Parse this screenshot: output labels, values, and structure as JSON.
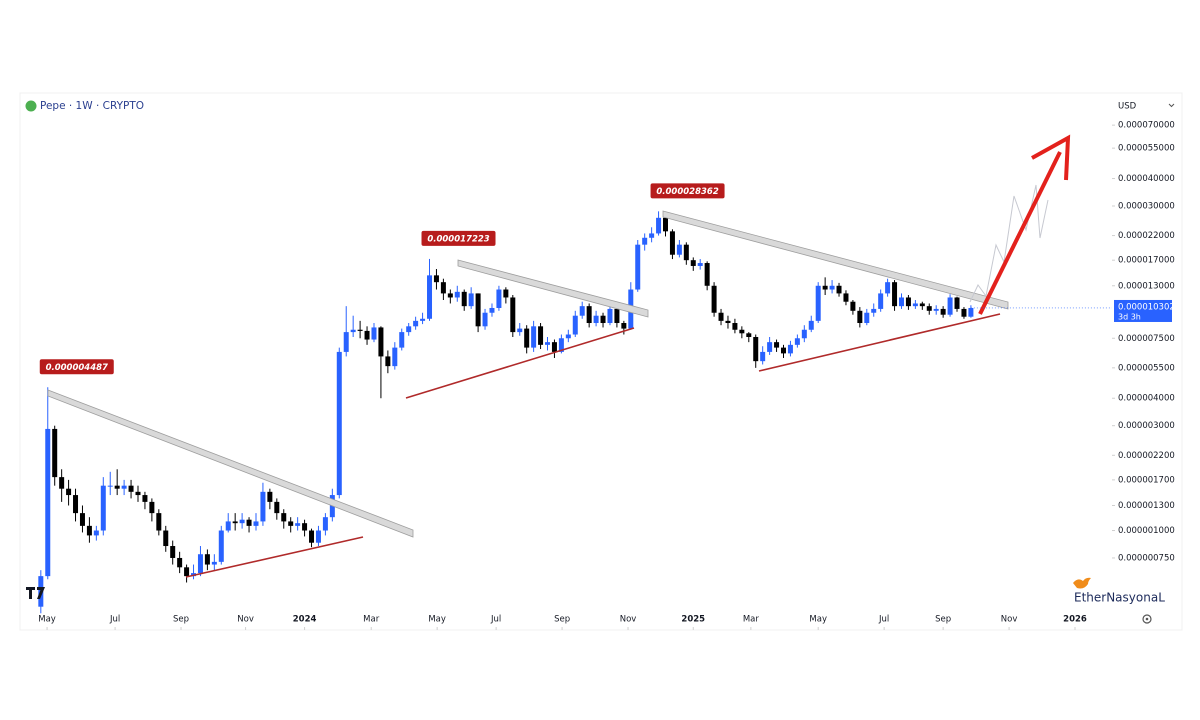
{
  "chart_data": {
    "type": "candlestick",
    "title": "Pepe · 1W · CRYPTO",
    "currency": "USD",
    "log_scale": true,
    "up_color": "#2962ff",
    "down_color": "#000000",
    "open": [
      4.5e-07,
      6.2e-07,
      2.9e-06,
      1.75e-06,
      1.55e-06,
      1.45e-06,
      1.2e-06,
      1.05e-06,
      9.5e-07,
      1e-06,
      1.6e-06,
      1.6e-06,
      1.55e-06,
      1.6e-06,
      1.5e-06,
      1.45e-06,
      1.35e-06,
      1.2e-06,
      1e-06,
      8.5e-07,
      7.5e-07,
      6.8e-07,
      6.2e-07,
      6.4e-07,
      7.8e-07,
      7e-07,
      7.2e-07,
      1e-06,
      1.1e-06,
      1.08e-06,
      1.12e-06,
      1.05e-06,
      1.1e-06,
      1.5e-06,
      1.35e-06,
      1.2e-06,
      1.1e-06,
      1.05e-06,
      1.08e-06,
      1e-06,
      8.8e-07,
      1e-06,
      1.15e-06,
      1.45e-06,
      6.5e-06,
      8e-06,
      8.2e-06,
      8.1e-06,
      7.4e-06,
      8.4e-06,
      6.2e-06,
      5.6e-06,
      6.8e-06,
      8e-06,
      8.5e-06,
      9e-06,
      9.2e-06,
      1.45e-05,
      1.35e-05,
      1.2e-05,
      1.15e-05,
      1.22e-05,
      1.05e-05,
      1.2e-05,
      8.5e-06,
      9.8e-06,
      1.03e-05,
      1.25e-05,
      1.15e-05,
      8e-06,
      8.3e-06,
      6.8e-06,
      8.5e-06,
      7e-06,
      7.2e-06,
      6.5e-06,
      7.5e-06,
      7.8e-06,
      9.5e-06,
      1.05e-05,
      8.8e-06,
      9.5e-06,
      8.8e-06,
      1.02e-05,
      8.8e-06,
      8.3e-06,
      1.25e-05,
      2e-05,
      2.15e-05,
      2.25e-05,
      2.65e-05,
      2.3e-05,
      1.8e-05,
      2e-05,
      1.7e-05,
      1.6e-05,
      1.65e-05,
      1.3e-05,
      9.8e-06,
      9e-06,
      8.8e-06,
      8.2e-06,
      7.9e-06,
      7.6e-06,
      5.9e-06,
      6.5e-06,
      7.2e-06,
      6.8e-06,
      6.4e-06,
      7e-06,
      7.5e-06,
      8.2e-06,
      9e-06,
      1.3e-05,
      1.25e-05,
      1.3e-05,
      1.2e-05,
      1.1e-05,
      1e-05,
      8.8e-06,
      9.8e-06,
      1.02e-05,
      1.2e-05,
      1.35e-05,
      1.05e-05,
      1.15e-05,
      1.05e-05,
      1.08e-05,
      1.05e-05,
      1e-05,
      1.02e-05,
      9.6e-06,
      1.15e-05,
      1.02e-05,
      9.4e-06
    ],
    "high": [
      6.6e-07,
      4.487e-06,
      3e-06,
      1.9e-06,
      1.7e-06,
      1.55e-06,
      1.3e-06,
      1.15e-06,
      1.05e-06,
      1.75e-06,
      1.85e-06,
      1.9e-06,
      1.7e-06,
      1.7e-06,
      1.6e-06,
      1.5e-06,
      1.4e-06,
      1.25e-06,
      1.05e-06,
      9e-07,
      8e-07,
      7e-07,
      7e-07,
      8.5e-07,
      8.2e-07,
      7.8e-07,
      1.05e-06,
      1.2e-06,
      1.2e-06,
      1.2e-06,
      1.15e-06,
      1.2e-06,
      1.65e-06,
      1.55e-06,
      1.4e-06,
      1.25e-06,
      1.15e-06,
      1.15e-06,
      1.12e-06,
      1.02e-06,
      1.05e-06,
      1.2e-06,
      1.55e-06,
      6.8e-06,
      1.05e-05,
      9.5e-06,
      9e-06,
      8.5e-06,
      8.8e-06,
      8.5e-06,
      6.6e-06,
      7.2e-06,
      8.3e-06,
      8.8e-06,
      9.4e-06,
      9.8e-06,
      1.7223e-05,
      1.55e-05,
      1.4e-05,
      1.25e-05,
      1.3e-05,
      1.25e-05,
      1.28e-05,
      1.2e-05,
      1.02e-05,
      1.08e-05,
      1.3e-05,
      1.28e-05,
      1.18e-05,
      8.8e-06,
      8.6e-06,
      9e-06,
      8.8e-06,
      7.6e-06,
      7.4e-06,
      7.8e-06,
      8.2e-06,
      1e-05,
      1.1e-05,
      1.08e-05,
      1e-05,
      9.8e-06,
      1.06e-05,
      1.04e-05,
      9e-06,
      1.35e-05,
      2.1e-05,
      2.25e-05,
      2.4e-05,
      2.8362e-05,
      2.7e-05,
      2.35e-05,
      2.1e-05,
      2.05e-05,
      1.75e-05,
      1.72e-05,
      1.68e-05,
      1.35e-05,
      1.02e-05,
      9.5e-06,
      9.2e-06,
      8.5e-06,
      8e-06,
      7.8e-06,
      6.9e-06,
      7.6e-06,
      7.4e-06,
      7e-06,
      7.3e-06,
      7.8e-06,
      8.6e-06,
      9.5e-06,
      1.35e-05,
      1.42e-05,
      1.38e-05,
      1.34e-05,
      1.24e-05,
      1.12e-05,
      1.04e-05,
      1.02e-05,
      1.08e-05,
      1.25e-05,
      1.4e-05,
      1.38e-05,
      1.2e-05,
      1.18e-05,
      1.12e-05,
      1.1e-05,
      1.08e-05,
      1.06e-05,
      1.05e-05,
      1.19e-05,
      1.16e-05,
      1.04e-05,
      1.06e-05
    ],
    "low": [
      4.2e-07,
      6e-07,
      1.6e-06,
      1.35e-06,
      1.3e-06,
      1.1e-06,
      9.8e-07,
      8.8e-07,
      9e-07,
      9.5e-07,
      1.45e-06,
      1.45e-06,
      1.45e-06,
      1.4e-06,
      1.35e-06,
      1.25e-06,
      1.1e-06,
      9.5e-07,
      8e-07,
      7e-07,
      6.4e-07,
      5.8e-07,
      6e-07,
      6.2e-07,
      6.6e-07,
      6.6e-07,
      7e-07,
      9.8e-07,
      1e-06,
      1.02e-06,
      9.8e-07,
      1e-06,
      1.05e-06,
      1.25e-06,
      1.12e-06,
      1.02e-06,
      9.8e-07,
      1e-06,
      9.4e-07,
      8.4e-07,
      8.5e-07,
      9.5e-07,
      1.1e-06,
      1.4e-06,
      6.2e-06,
      7.6e-06,
      7.5e-06,
      7e-06,
      7.2e-06,
      4e-06,
      5.2e-06,
      5.4e-06,
      6.6e-06,
      7.7e-06,
      8.2e-06,
      8.7e-06,
      9e-06,
      1.25e-05,
      1.12e-05,
      1.08e-05,
      1.1e-05,
      1e-05,
      1.02e-05,
      8e-06,
      8.2e-06,
      9.4e-06,
      1e-05,
      1.08e-05,
      7.6e-06,
      7.7e-06,
      6.4e-06,
      6.5e-06,
      6.7e-06,
      6.6e-06,
      6.1e-06,
      6.4e-06,
      7.2e-06,
      7.6e-06,
      9.2e-06,
      8.4e-06,
      8.5e-06,
      8.4e-06,
      8.6e-06,
      8.4e-06,
      7.8e-06,
      8.2e-06,
      1.22e-05,
      1.88e-05,
      2.05e-05,
      2.2e-05,
      2.18e-05,
      1.72e-05,
      1.75e-05,
      1.62e-05,
      1.52e-05,
      1.54e-05,
      1.24e-05,
      9.4e-06,
      8.6e-06,
      8.3e-06,
      7.9e-06,
      7.5e-06,
      7.2e-06,
      5.5e-06,
      5.7e-06,
      6.3e-06,
      6.5e-06,
      6.1e-06,
      6.2e-06,
      6.8e-06,
      7.2e-06,
      8e-06,
      8.8e-06,
      1.18e-05,
      1.2e-05,
      1.16e-05,
      1.06e-05,
      9.6e-06,
      8.4e-06,
      8.6e-06,
      9.4e-06,
      9.9e-06,
      1.16e-05,
      1e-05,
      1.02e-05,
      1.01e-05,
      1.02e-05,
      1.01e-05,
      9.6e-06,
      9.6e-06,
      9.3e-06,
      9.4e-06,
      9.9e-06,
      9.2e-06,
      9.3e-06
    ],
    "close": [
      6.2e-07,
      2.9e-06,
      1.75e-06,
      1.55e-06,
      1.45e-06,
      1.2e-06,
      1.05e-06,
      9.5e-07,
      1e-06,
      1.6e-06,
      1.6e-06,
      1.55e-06,
      1.6e-06,
      1.5e-06,
      1.45e-06,
      1.35e-06,
      1.2e-06,
      1e-06,
      8.5e-07,
      7.5e-07,
      6.8e-07,
      6.2e-07,
      6.4e-07,
      7.8e-07,
      7e-07,
      7.2e-07,
      1e-06,
      1.1e-06,
      1.08e-06,
      1.12e-06,
      1.05e-06,
      1.1e-06,
      1.5e-06,
      1.35e-06,
      1.2e-06,
      1.1e-06,
      1.05e-06,
      1.08e-06,
      1e-06,
      8.8e-07,
      1e-06,
      1.15e-06,
      1.45e-06,
      6.5e-06,
      8e-06,
      8.2e-06,
      8.1e-06,
      7.4e-06,
      8.4e-06,
      6.2e-06,
      5.6e-06,
      6.8e-06,
      8e-06,
      8.5e-06,
      9e-06,
      9.2e-06,
      1.45e-05,
      1.35e-05,
      1.2e-05,
      1.15e-05,
      1.22e-05,
      1.05e-05,
      1.2e-05,
      8.5e-06,
      9.8e-06,
      1.03e-05,
      1.25e-05,
      1.15e-05,
      8e-06,
      8.3e-06,
      6.8e-06,
      8.5e-06,
      7e-06,
      7.2e-06,
      6.5e-06,
      7.5e-06,
      7.8e-06,
      9.5e-06,
      1.05e-05,
      8.8e-06,
      9.5e-06,
      8.8e-06,
      1.02e-05,
      8.8e-06,
      8.3e-06,
      1.25e-05,
      2e-05,
      2.15e-05,
      2.25e-05,
      2.65e-05,
      2.3e-05,
      1.8e-05,
      2e-05,
      1.7e-05,
      1.6e-05,
      1.65e-05,
      1.3e-05,
      9.8e-06,
      9e-06,
      8.8e-06,
      8.2e-06,
      7.9e-06,
      7.6e-06,
      5.9e-06,
      6.5e-06,
      7.2e-06,
      6.8e-06,
      6.4e-06,
      7e-06,
      7.5e-06,
      8.2e-06,
      9e-06,
      1.3e-05,
      1.25e-05,
      1.3e-05,
      1.2e-05,
      1.1e-05,
      1e-05,
      8.8e-06,
      9.8e-06,
      1.02e-05,
      1.2e-05,
      1.35e-05,
      1.05e-05,
      1.15e-05,
      1.05e-05,
      1.08e-05,
      1.05e-05,
      1e-05,
      1.02e-05,
      9.6e-06,
      1.15e-05,
      1.02e-05,
      9.4e-06,
      1.0302e-05
    ],
    "xlim": [
      -3,
      152.6
    ],
    "xticks": [
      {
        "value": 0.9,
        "label": "May"
      },
      {
        "value": 10.7,
        "label": "Jul"
      },
      {
        "value": 20.2,
        "label": "Sep"
      },
      {
        "value": 29.5,
        "label": "Nov"
      },
      {
        "value": 38.0,
        "label": "2024"
      },
      {
        "value": 47.6,
        "label": "Mar"
      },
      {
        "value": 57.1,
        "label": "May"
      },
      {
        "value": 65.6,
        "label": "Jul"
      },
      {
        "value": 75.1,
        "label": "Sep"
      },
      {
        "value": 84.6,
        "label": "Nov"
      },
      {
        "value": 94.0,
        "label": "2025"
      },
      {
        "value": 102.3,
        "label": "Mar"
      },
      {
        "value": 112.0,
        "label": "May"
      },
      {
        "value": 121.5,
        "label": "Jul"
      },
      {
        "value": 130.0,
        "label": "Sep"
      },
      {
        "value": 139.5,
        "label": "Nov"
      },
      {
        "value": 149.0,
        "label": "2026"
      }
    ],
    "ylim": [
      3.6e-07,
      9.6e-05
    ],
    "yticks": [
      {
        "value": 7e-05,
        "label": "0.000070000"
      },
      {
        "value": 5.5e-05,
        "label": "0.000055000"
      },
      {
        "value": 4e-05,
        "label": "0.000040000"
      },
      {
        "value": 3e-05,
        "label": "0.000030000"
      },
      {
        "value": 2.2e-05,
        "label": "0.000022000"
      },
      {
        "value": 1.7e-05,
        "label": "0.000017000"
      },
      {
        "value": 1.3e-05,
        "label": "0.000013000"
      },
      {
        "value": 7.5e-06,
        "label": "0.000007500"
      },
      {
        "value": 5.5e-06,
        "label": "0.000005500"
      },
      {
        "value": 4e-06,
        "label": "0.000004000"
      },
      {
        "value": 3e-06,
        "label": "0.000003000"
      },
      {
        "value": 2.2e-06,
        "label": "0.000002200"
      },
      {
        "value": 1.7e-06,
        "label": "0.000001700"
      },
      {
        "value": 1.3e-06,
        "label": "0.000001300"
      },
      {
        "value": 1e-06,
        "label": "0.000001000"
      },
      {
        "value": 7.5e-07,
        "label": "0.000000750"
      }
    ],
    "annotations": [
      {
        "x": 1,
        "value": 4.487e-06,
        "label": "0.000004487"
      },
      {
        "x": 56,
        "value": 1.7223e-05,
        "label": "0.000017223"
      },
      {
        "x": 89,
        "value": 2.8362e-05,
        "label": "0.000028362"
      }
    ],
    "last_price": {
      "value": 1.0302e-05,
      "label": "0.000010302",
      "countdown": "3d 3h"
    },
    "watermark": "EtherNasyonaL"
  }
}
